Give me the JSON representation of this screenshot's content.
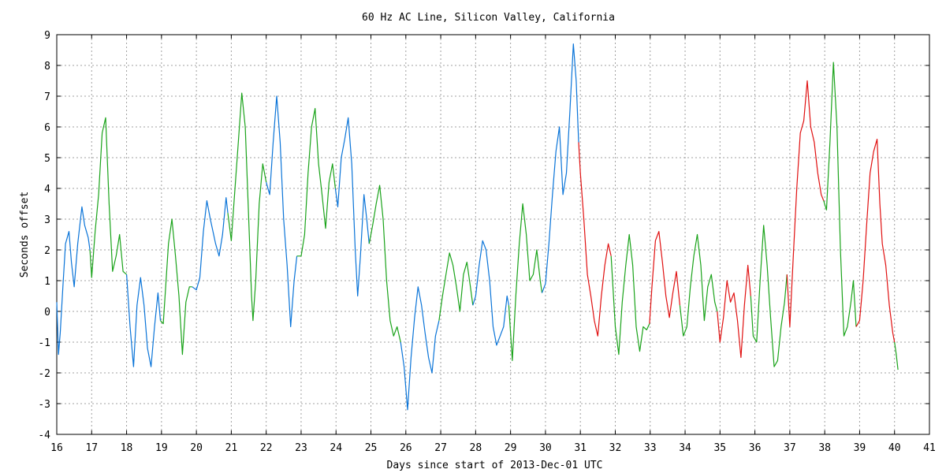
{
  "chart_data": {
    "type": "line",
    "title": "60 Hz AC Line, Silicon Valley, California",
    "xlabel": "Days since start of 2013-Dec-01 UTC",
    "ylabel": "Seconds offset",
    "xlim": [
      16,
      41
    ],
    "ylim": [
      -4,
      9
    ],
    "xticks": [
      16,
      17,
      18,
      19,
      20,
      21,
      22,
      23,
      24,
      25,
      26,
      27,
      28,
      29,
      30,
      31,
      32,
      33,
      34,
      35,
      36,
      37,
      38,
      39,
      40,
      41
    ],
    "yticks": [
      -4,
      -3,
      -2,
      -1,
      0,
      1,
      2,
      3,
      4,
      5,
      6,
      7,
      8,
      9
    ],
    "grid": true,
    "colors": {
      "blue": "#0a74d8",
      "green": "#1aa31a",
      "red": "#e01010"
    },
    "series": [
      {
        "color": "#0a74d8",
        "points": [
          [
            16.0,
            0.3
          ],
          [
            16.05,
            -1.4
          ],
          [
            16.1,
            -0.7
          ],
          [
            16.18,
            0.9
          ],
          [
            16.25,
            2.2
          ],
          [
            16.35,
            2.6
          ],
          [
            16.42,
            1.6
          ],
          [
            16.5,
            0.8
          ],
          [
            16.6,
            2.2
          ],
          [
            16.72,
            3.4
          ],
          [
            16.8,
            2.8
          ],
          [
            16.9,
            2.4
          ],
          [
            16.95,
            2.0
          ]
        ]
      },
      {
        "color": "#1aa31a",
        "points": [
          [
            16.95,
            2.0
          ],
          [
            17.0,
            1.1
          ],
          [
            17.1,
            2.6
          ],
          [
            17.2,
            3.8
          ],
          [
            17.3,
            5.8
          ],
          [
            17.4,
            6.3
          ],
          [
            17.5,
            3.5
          ],
          [
            17.6,
            1.3
          ],
          [
            17.7,
            1.8
          ],
          [
            17.8,
            2.5
          ],
          [
            17.9,
            1.3
          ],
          [
            18.0,
            1.2
          ]
        ]
      },
      {
        "color": "#0a74d8",
        "points": [
          [
            18.0,
            1.2
          ],
          [
            18.1,
            -0.5
          ],
          [
            18.2,
            -1.8
          ],
          [
            18.3,
            0.2
          ],
          [
            18.4,
            1.1
          ],
          [
            18.5,
            0.2
          ],
          [
            18.6,
            -1.2
          ],
          [
            18.7,
            -1.8
          ],
          [
            18.8,
            -0.5
          ],
          [
            18.9,
            0.6
          ],
          [
            18.97,
            -0.3
          ]
        ]
      },
      {
        "color": "#1aa31a",
        "points": [
          [
            18.97,
            -0.3
          ],
          [
            19.05,
            -0.4
          ],
          [
            19.2,
            2.2
          ],
          [
            19.3,
            3.0
          ],
          [
            19.4,
            1.8
          ],
          [
            19.5,
            0.5
          ],
          [
            19.6,
            -1.4
          ],
          [
            19.7,
            0.3
          ],
          [
            19.8,
            0.8
          ],
          [
            19.88,
            0.8
          ]
        ]
      },
      {
        "color": "#0a74d8",
        "points": [
          [
            19.88,
            0.8
          ],
          [
            20.0,
            0.7
          ],
          [
            20.1,
            1.1
          ],
          [
            20.2,
            2.6
          ],
          [
            20.3,
            3.6
          ],
          [
            20.4,
            3.0
          ],
          [
            20.55,
            2.2
          ],
          [
            20.65,
            1.8
          ],
          [
            20.75,
            2.5
          ],
          [
            20.85,
            3.7
          ],
          [
            20.9,
            3.2
          ]
        ]
      },
      {
        "color": "#1aa31a",
        "points": [
          [
            20.9,
            3.2
          ],
          [
            21.0,
            2.3
          ],
          [
            21.1,
            3.9
          ],
          [
            21.2,
            5.5
          ],
          [
            21.3,
            7.1
          ],
          [
            21.4,
            6.0
          ],
          [
            21.5,
            3.0
          ],
          [
            21.58,
            0.5
          ],
          [
            21.62,
            -0.3
          ],
          [
            21.7,
            1.0
          ],
          [
            21.8,
            3.5
          ],
          [
            21.9,
            4.8
          ],
          [
            22.0,
            4.2
          ]
        ]
      },
      {
        "color": "#0a74d8",
        "points": [
          [
            22.0,
            4.2
          ],
          [
            22.1,
            3.8
          ],
          [
            22.2,
            5.5
          ],
          [
            22.3,
            7.0
          ],
          [
            22.4,
            5.5
          ],
          [
            22.5,
            3.0
          ],
          [
            22.6,
            1.5
          ],
          [
            22.7,
            -0.5
          ],
          [
            22.8,
            1.0
          ],
          [
            22.88,
            1.8
          ]
        ]
      },
      {
        "color": "#1aa31a",
        "points": [
          [
            22.88,
            1.8
          ],
          [
            23.0,
            1.8
          ],
          [
            23.1,
            2.5
          ],
          [
            23.2,
            4.5
          ],
          [
            23.3,
            6.0
          ],
          [
            23.4,
            6.6
          ],
          [
            23.5,
            4.8
          ],
          [
            23.6,
            3.8
          ],
          [
            23.7,
            2.7
          ],
          [
            23.8,
            4.2
          ],
          [
            23.9,
            4.8
          ],
          [
            23.98,
            4.0
          ]
        ]
      },
      {
        "color": "#0a74d8",
        "points": [
          [
            23.98,
            4.0
          ],
          [
            24.05,
            3.4
          ],
          [
            24.15,
            5.0
          ],
          [
            24.25,
            5.6
          ],
          [
            24.35,
            6.3
          ],
          [
            24.45,
            4.8
          ],
          [
            24.55,
            2.0
          ],
          [
            24.62,
            0.5
          ],
          [
            24.7,
            1.8
          ],
          [
            24.8,
            3.8
          ],
          [
            24.88,
            3.0
          ],
          [
            24.95,
            2.2
          ]
        ]
      },
      {
        "color": "#1aa31a",
        "points": [
          [
            24.95,
            2.2
          ],
          [
            25.05,
            2.8
          ],
          [
            25.15,
            3.5
          ],
          [
            25.25,
            4.1
          ],
          [
            25.35,
            3.0
          ],
          [
            25.45,
            1.0
          ],
          [
            25.55,
            -0.3
          ],
          [
            25.65,
            -0.8
          ],
          [
            25.75,
            -0.5
          ],
          [
            25.85,
            -1.0
          ]
        ]
      },
      {
        "color": "#0a74d8",
        "points": [
          [
            25.85,
            -1.0
          ],
          [
            25.95,
            -1.8
          ],
          [
            26.05,
            -3.2
          ],
          [
            26.15,
            -1.5
          ],
          [
            26.25,
            -0.2
          ],
          [
            26.35,
            0.8
          ],
          [
            26.45,
            0.2
          ],
          [
            26.55,
            -0.7
          ],
          [
            26.65,
            -1.5
          ],
          [
            26.75,
            -2.0
          ],
          [
            26.85,
            -0.8
          ],
          [
            26.95,
            -0.3
          ]
        ]
      },
      {
        "color": "#1aa31a",
        "points": [
          [
            26.95,
            -0.3
          ],
          [
            27.05,
            0.5
          ],
          [
            27.15,
            1.2
          ],
          [
            27.25,
            1.9
          ],
          [
            27.35,
            1.5
          ],
          [
            27.45,
            0.8
          ],
          [
            27.55,
            0.0
          ],
          [
            27.65,
            1.2
          ],
          [
            27.75,
            1.6
          ],
          [
            27.85,
            0.8
          ],
          [
            27.92,
            0.2
          ]
        ]
      },
      {
        "color": "#0a74d8",
        "points": [
          [
            27.92,
            0.2
          ],
          [
            28.0,
            0.5
          ],
          [
            28.1,
            1.5
          ],
          [
            28.2,
            2.3
          ],
          [
            28.3,
            2.0
          ],
          [
            28.4,
            1.0
          ],
          [
            28.5,
            -0.5
          ],
          [
            28.6,
            -1.1
          ],
          [
            28.7,
            -0.8
          ],
          [
            28.8,
            -0.5
          ],
          [
            28.9,
            0.5
          ],
          [
            28.95,
            0.2
          ]
        ]
      },
      {
        "color": "#1aa31a",
        "points": [
          [
            28.95,
            0.2
          ],
          [
            29.05,
            -1.6
          ],
          [
            29.15,
            0.5
          ],
          [
            29.25,
            2.2
          ],
          [
            29.35,
            3.5
          ],
          [
            29.45,
            2.5
          ],
          [
            29.55,
            1.0
          ],
          [
            29.65,
            1.2
          ],
          [
            29.75,
            2.0
          ],
          [
            29.85,
            1.0
          ],
          [
            29.9,
            0.6
          ]
        ]
      },
      {
        "color": "#0a74d8",
        "points": [
          [
            29.9,
            0.6
          ],
          [
            30.0,
            0.9
          ],
          [
            30.1,
            2.2
          ],
          [
            30.2,
            3.8
          ],
          [
            30.3,
            5.2
          ],
          [
            30.4,
            6.0
          ],
          [
            30.5,
            3.8
          ],
          [
            30.6,
            4.5
          ],
          [
            30.7,
            6.5
          ],
          [
            30.8,
            8.7
          ],
          [
            30.88,
            7.5
          ],
          [
            30.95,
            5.5
          ]
        ]
      },
      {
        "color": "#e01010",
        "points": [
          [
            30.95,
            5.5
          ],
          [
            31.0,
            4.5
          ],
          [
            31.1,
            3.0
          ],
          [
            31.2,
            1.2
          ],
          [
            31.3,
            0.5
          ],
          [
            31.4,
            -0.3
          ],
          [
            31.5,
            -0.8
          ],
          [
            31.6,
            0.5
          ],
          [
            31.7,
            1.5
          ],
          [
            31.8,
            2.2
          ],
          [
            31.88,
            1.8
          ]
        ]
      },
      {
        "color": "#1aa31a",
        "points": [
          [
            31.88,
            1.8
          ],
          [
            32.0,
            -0.5
          ],
          [
            32.1,
            -1.4
          ],
          [
            32.2,
            0.3
          ],
          [
            32.3,
            1.5
          ],
          [
            32.4,
            2.5
          ],
          [
            32.5,
            1.5
          ],
          [
            32.6,
            -0.5
          ],
          [
            32.7,
            -1.3
          ],
          [
            32.8,
            -0.5
          ],
          [
            32.9,
            -0.6
          ],
          [
            32.98,
            -0.4
          ]
        ]
      },
      {
        "color": "#e01010",
        "points": [
          [
            32.98,
            -0.4
          ],
          [
            33.05,
            0.8
          ],
          [
            33.15,
            2.3
          ],
          [
            33.25,
            2.6
          ],
          [
            33.35,
            1.6
          ],
          [
            33.45,
            0.5
          ],
          [
            33.55,
            -0.2
          ],
          [
            33.65,
            0.6
          ],
          [
            33.75,
            1.3
          ],
          [
            33.85,
            0.2
          ]
        ]
      },
      {
        "color": "#1aa31a",
        "points": [
          [
            33.85,
            0.2
          ],
          [
            33.95,
            -0.8
          ],
          [
            34.05,
            -0.5
          ],
          [
            34.15,
            0.8
          ],
          [
            34.25,
            1.8
          ],
          [
            34.35,
            2.5
          ],
          [
            34.45,
            1.5
          ],
          [
            34.55,
            -0.3
          ],
          [
            34.65,
            0.8
          ],
          [
            34.75,
            1.2
          ],
          [
            34.85,
            0.3
          ],
          [
            34.92,
            0.0
          ]
        ]
      },
      {
        "color": "#e01010",
        "points": [
          [
            34.92,
            0.0
          ],
          [
            35.0,
            -1.0
          ],
          [
            35.1,
            -0.2
          ],
          [
            35.2,
            1.0
          ],
          [
            35.3,
            0.3
          ],
          [
            35.4,
            0.6
          ],
          [
            35.5,
            -0.3
          ],
          [
            35.6,
            -1.5
          ],
          [
            35.7,
            0.2
          ],
          [
            35.8,
            1.5
          ],
          [
            35.88,
            0.5
          ]
        ]
      },
      {
        "color": "#1aa31a",
        "points": [
          [
            35.88,
            0.5
          ],
          [
            35.95,
            -0.8
          ],
          [
            36.05,
            -1.0
          ],
          [
            36.15,
            1.0
          ],
          [
            36.25,
            2.8
          ],
          [
            36.35,
            1.5
          ],
          [
            36.45,
            -0.2
          ],
          [
            36.55,
            -1.8
          ],
          [
            36.65,
            -1.6
          ],
          [
            36.75,
            -0.5
          ],
          [
            36.85,
            0.3
          ],
          [
            36.92,
            1.2
          ]
        ]
      },
      {
        "color": "#e01010",
        "points": [
          [
            36.92,
            1.2
          ],
          [
            37.0,
            -0.5
          ],
          [
            37.1,
            1.8
          ],
          [
            37.2,
            4.0
          ],
          [
            37.3,
            5.8
          ],
          [
            37.4,
            6.2
          ],
          [
            37.5,
            7.5
          ],
          [
            37.6,
            6.0
          ],
          [
            37.7,
            5.5
          ],
          [
            37.8,
            4.5
          ],
          [
            37.9,
            3.8
          ],
          [
            37.97,
            3.6
          ]
        ]
      },
      {
        "color": "#1aa31a",
        "points": [
          [
            37.97,
            3.6
          ],
          [
            38.05,
            3.3
          ],
          [
            38.15,
            5.5
          ],
          [
            38.25,
            8.1
          ],
          [
            38.35,
            6.0
          ],
          [
            38.45,
            2.0
          ],
          [
            38.55,
            -0.8
          ],
          [
            38.65,
            -0.5
          ],
          [
            38.75,
            0.3
          ],
          [
            38.82,
            1.0
          ],
          [
            38.9,
            -0.5
          ]
        ]
      },
      {
        "color": "#e01010",
        "points": [
          [
            38.9,
            -0.5
          ],
          [
            39.0,
            -0.3
          ],
          [
            39.1,
            1.0
          ],
          [
            39.2,
            2.8
          ],
          [
            39.3,
            4.5
          ],
          [
            39.4,
            5.2
          ],
          [
            39.5,
            5.6
          ],
          [
            39.58,
            3.5
          ],
          [
            39.65,
            2.2
          ],
          [
            39.75,
            1.5
          ],
          [
            39.85,
            0.2
          ],
          [
            39.95,
            -0.7
          ],
          [
            40.0,
            -1.0
          ]
        ]
      },
      {
        "color": "#1aa31a",
        "points": [
          [
            40.0,
            -1.0
          ],
          [
            40.05,
            -1.4
          ],
          [
            40.1,
            -1.9
          ]
        ]
      }
    ]
  }
}
